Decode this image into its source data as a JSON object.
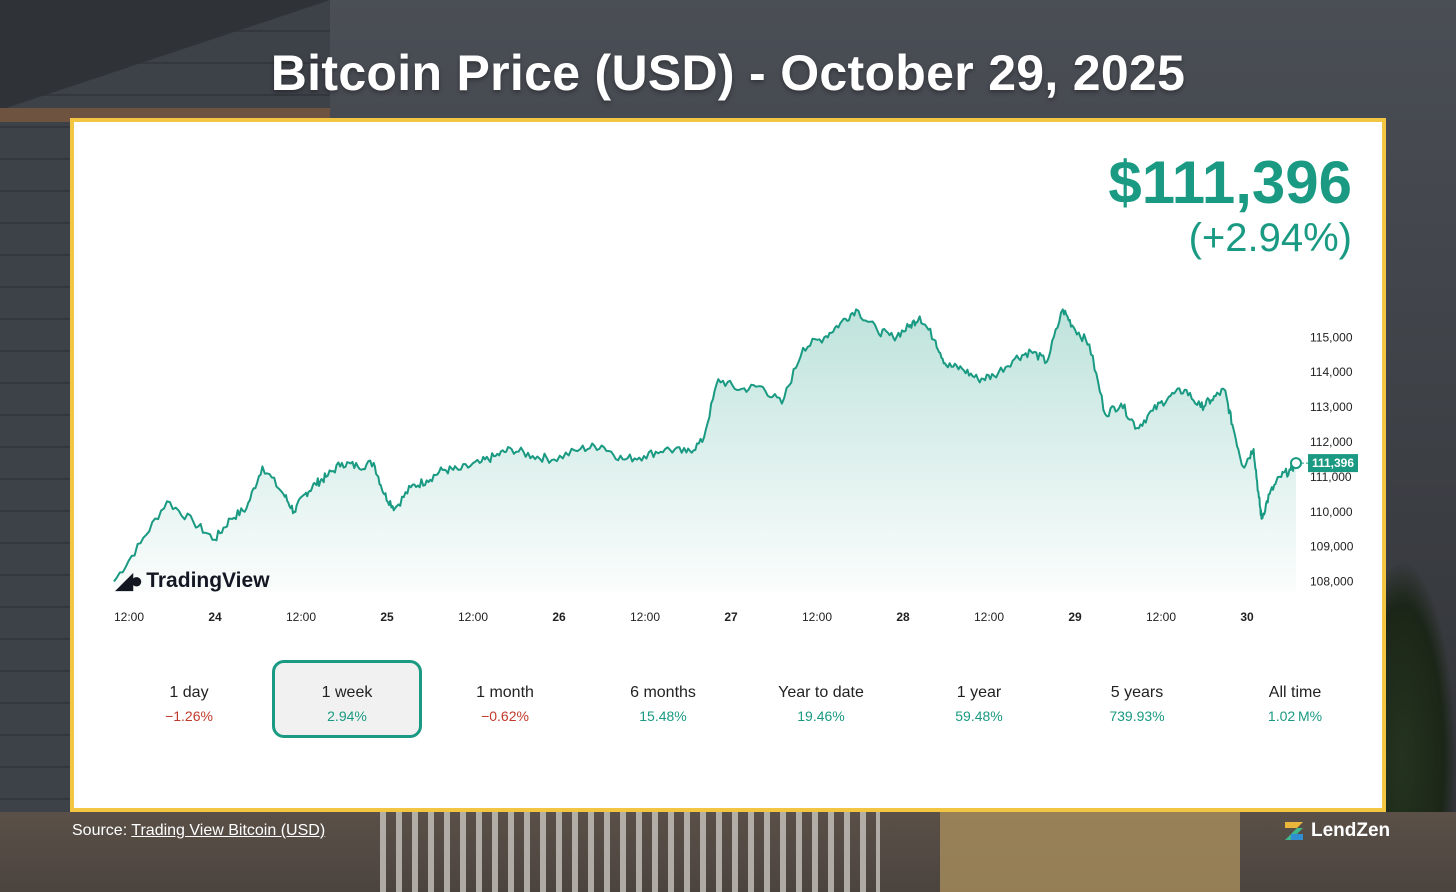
{
  "title": "Bitcoin Price (USD) - October 29, 2025",
  "price": {
    "value": "$111,396",
    "change": "(+2.94%)"
  },
  "watermark": "TradingView",
  "current_label": "111,396",
  "periods": [
    {
      "label": "1 day",
      "value": "−1.26%",
      "sign": "neg"
    },
    {
      "label": "1 week",
      "value": "2.94%",
      "sign": "pos",
      "selected": true
    },
    {
      "label": "1 month",
      "value": "−0.62%",
      "sign": "neg"
    },
    {
      "label": "6 months",
      "value": "15.48%",
      "sign": "pos"
    },
    {
      "label": "Year to date",
      "value": "19.46%",
      "sign": "pos"
    },
    {
      "label": "1 year",
      "value": "59.48%",
      "sign": "pos"
    },
    {
      "label": "5 years",
      "value": "739.93%",
      "sign": "pos"
    },
    {
      "label": "All time",
      "value": "1.02 M%",
      "sign": "pos"
    }
  ],
  "source": {
    "prefix": "Source: ",
    "link_text": "Trading View Bitcoin (USD)"
  },
  "brand": "LendZen",
  "colors": {
    "accent": "#1a9a82",
    "negative": "#c0392b",
    "frame": "#f2c642"
  },
  "chart_data": {
    "type": "area",
    "title": "",
    "xlabel": "",
    "ylabel": "",
    "x_ticks": [
      "12:00",
      "24",
      "12:00",
      "25",
      "12:00",
      "26",
      "12:00",
      "27",
      "12:00",
      "28",
      "12:00",
      "29",
      "12:00",
      "30"
    ],
    "y_ticks": [
      108000,
      109000,
      110000,
      111000,
      112000,
      113000,
      114000,
      115000
    ],
    "ylim": [
      107700,
      116300
    ],
    "grid": false,
    "series": [
      {
        "x": [
          0,
          0.5,
          1,
          1.5,
          1.9,
          2.2,
          2.5,
          2.8,
          3.2,
          3.4,
          3.6,
          3.8,
          4.0,
          4.3,
          4.6,
          4.9,
          5.1,
          5.3,
          5.6,
          5.9,
          6.2,
          6.5,
          6.9,
          7.2,
          7.5,
          7.9,
          8.3,
          8.8,
          9.2,
          9.6,
          10.0,
          10.4,
          10.8,
          11.1,
          11.4,
          11.8,
          12.2,
          12.6,
          13.0,
          13.4,
          13.7,
          14.0,
          14.4,
          14.7,
          15.0,
          15.2,
          15.5,
          15.7,
          16.0,
          16.3,
          16.6,
          17.0,
          17.3,
          17.6,
          17.9,
          18.1,
          18.4,
          18.7,
          19.0,
          19.3,
          19.6,
          19.9,
          20.2,
          20.5,
          20.7,
          20.95,
          21.1,
          21.3,
          21.5,
          21.6,
          21.65,
          21.8,
          22.0,
          22.2,
          22.3
        ],
        "y": [
          108000,
          109100,
          110300,
          109700,
          109200,
          109800,
          110100,
          111300,
          110500,
          110000,
          110500,
          110800,
          111000,
          111400,
          111300,
          111400,
          110500,
          110100,
          110700,
          110900,
          111200,
          111200,
          111400,
          111600,
          111800,
          111600,
          111500,
          111800,
          111900,
          111500,
          111600,
          111800,
          111700,
          112000,
          113800,
          113500,
          113600,
          113100,
          114700,
          115000,
          115400,
          115800,
          115200,
          115000,
          115300,
          115600,
          114900,
          114200,
          114100,
          113800,
          113900,
          114400,
          114600,
          114300,
          115800,
          115300,
          114800,
          112800,
          113100,
          112400,
          112900,
          113300,
          113500,
          113000,
          113200,
          113500,
          112500,
          111300,
          111800,
          110400,
          109800,
          110500,
          111000,
          111200,
          111396
        ],
        "fill": true,
        "current_value": 111396
      }
    ]
  }
}
